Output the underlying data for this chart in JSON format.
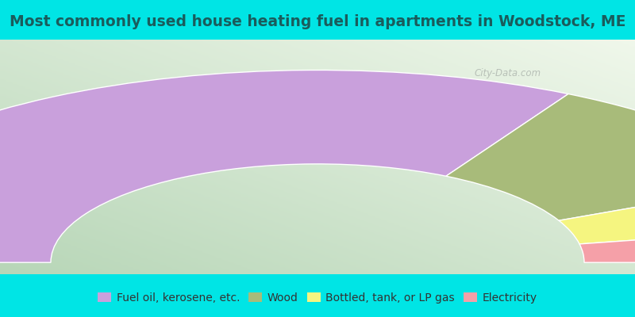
{
  "title": "Most commonly used house heating fuel in apartments in Woodstock, ME",
  "title_color": "#1a5c5c",
  "title_fontsize": 13.5,
  "title_bg": "#00e5e5",
  "legend_bg": "#00e5e5",
  "chart_bg_left": "#b8d8b8",
  "chart_bg_right": "#e8f0e8",
  "segments": [
    {
      "label": "Fuel oil, kerosene, etc.",
      "value": 66,
      "color": "#c9a0dc"
    },
    {
      "label": "Wood",
      "value": 20,
      "color": "#a8bb7a"
    },
    {
      "label": "Bottled, tank, or LP gas",
      "value": 8,
      "color": "#f5f580"
    },
    {
      "label": "Electricity",
      "value": 6,
      "color": "#f5a0a8"
    }
  ],
  "legend_text_color": "#333333",
  "legend_fontsize": 10,
  "watermark_text": "City-Data.com",
  "watermark_color": "#b0b8b0"
}
